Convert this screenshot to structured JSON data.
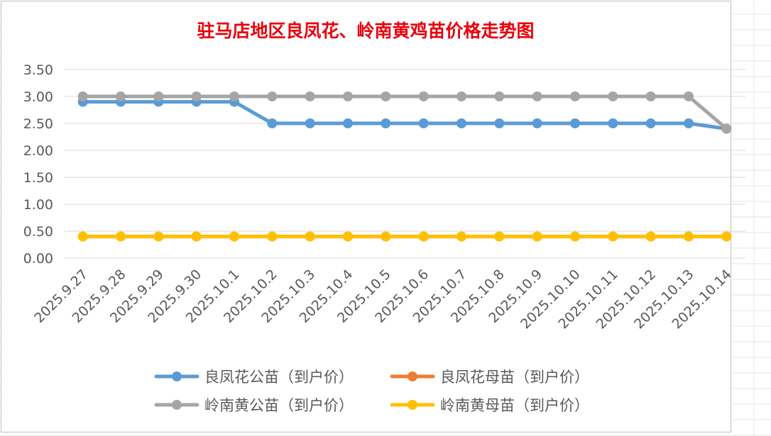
{
  "chart_data": {
    "type": "line",
    "title": "驻马店地区良凤花、岭南黄鸡苗价格走势图",
    "categories": [
      "2025.9.27",
      "2025.9.28",
      "2025.9.29",
      "2025.9.30",
      "2025.10.1",
      "2025.10.2",
      "2025.10.3",
      "2025.10.4",
      "2025.10.5",
      "2025.10.6",
      "2025.10.7",
      "2025.10.8",
      "2025.10.9",
      "2025.10.10",
      "2025.10.11",
      "2025.10.12",
      "2025.10.13",
      "2025.10.14"
    ],
    "y_ticks": [
      "0.00",
      "0.50",
      "1.00",
      "1.50",
      "2.00",
      "2.50",
      "3.00",
      "3.50"
    ],
    "ylim": [
      0,
      3.5
    ],
    "grid": true,
    "legend_position": "bottom",
    "series": [
      {
        "name": "良凤花公苗（到户价）",
        "color": "#5b9bd5",
        "values": [
          2.9,
          2.9,
          2.9,
          2.9,
          2.9,
          2.5,
          2.5,
          2.5,
          2.5,
          2.5,
          2.5,
          2.5,
          2.5,
          2.5,
          2.5,
          2.5,
          2.5,
          2.4
        ]
      },
      {
        "name": "良凤花母苗（到户价）",
        "color": "#ed7d31",
        "values": [
          0.4,
          0.4,
          0.4,
          0.4,
          0.4,
          0.4,
          0.4,
          0.4,
          0.4,
          0.4,
          0.4,
          0.4,
          0.4,
          0.4,
          0.4,
          0.4,
          0.4,
          0.4
        ]
      },
      {
        "name": "岭南黄公苗（到户价）",
        "color": "#a5a5a5",
        "values": [
          3.0,
          3.0,
          3.0,
          3.0,
          3.0,
          3.0,
          3.0,
          3.0,
          3.0,
          3.0,
          3.0,
          3.0,
          3.0,
          3.0,
          3.0,
          3.0,
          3.0,
          2.4
        ]
      },
      {
        "name": "岭南黄母苗（到户价）",
        "color": "#ffc000",
        "values": [
          0.4,
          0.4,
          0.4,
          0.4,
          0.4,
          0.4,
          0.4,
          0.4,
          0.4,
          0.4,
          0.4,
          0.4,
          0.4,
          0.4,
          0.4,
          0.4,
          0.4,
          0.4
        ]
      }
    ]
  }
}
